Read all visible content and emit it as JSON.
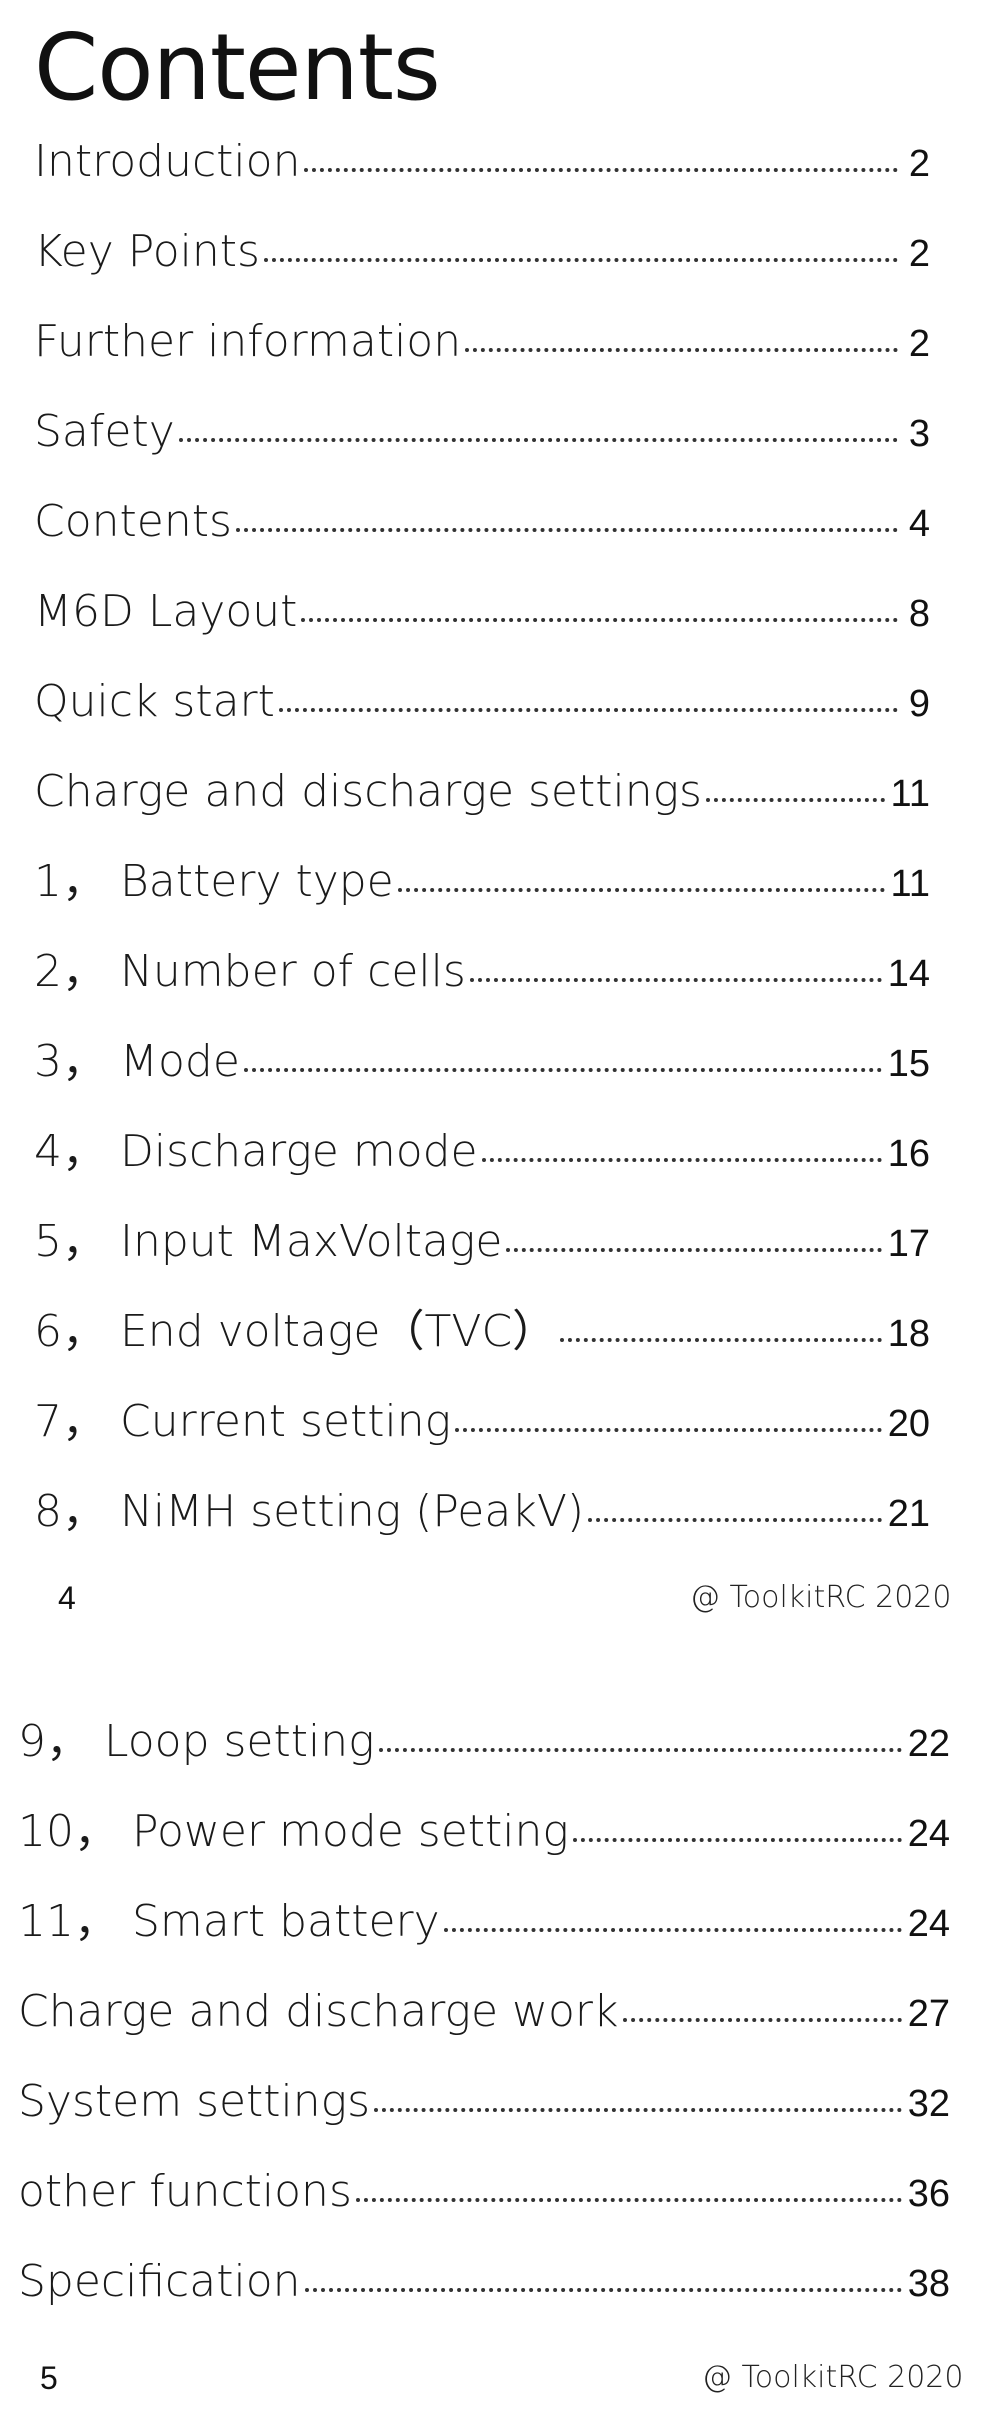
{
  "page1": {
    "title": "Contents",
    "entries": [
      {
        "num": "",
        "title": "Introduction",
        "page": "2"
      },
      {
        "num": "",
        "title": "Key Points",
        "page": "2"
      },
      {
        "num": "",
        "title": "Further information",
        "page": "2"
      },
      {
        "num": "",
        "title": "Safety",
        "page": "3"
      },
      {
        "num": "",
        "title": "Contents",
        "page": "4"
      },
      {
        "num": "",
        "title": "M6D Layout",
        "page": "8"
      },
      {
        "num": "",
        "title": "Quick start",
        "page": "9"
      },
      {
        "num": "",
        "title": "Charge and discharge settings",
        "page": "11"
      },
      {
        "num": "1，",
        "title": "Battery type",
        "page": "11"
      },
      {
        "num": "2，",
        "title": "Number of cells",
        "page": "14"
      },
      {
        "num": "3，",
        "title": "Mode",
        "page": "15"
      },
      {
        "num": "4，",
        "title": "Discharge mode",
        "page": "16"
      },
      {
        "num": "5，",
        "title": "Input MaxVoltage",
        "page": "17"
      },
      {
        "num": "6，",
        "title": "End voltage（TVC）",
        "page": "18"
      },
      {
        "num": "7，",
        "title": "Current setting",
        "page": "20"
      },
      {
        "num": "8，",
        "title": "NiMH setting (PeakV)",
        "page": "21"
      }
    ],
    "footer": {
      "page_number": "4",
      "copyright": "@ ToolkitRC 2020"
    }
  },
  "page2": {
    "entries": [
      {
        "num": "9，",
        "title": "Loop setting",
        "page": "22"
      },
      {
        "num": "10，",
        "title": "Power mode setting",
        "page": "24"
      },
      {
        "num": "11，",
        "title": "Smart battery",
        "page": "24"
      },
      {
        "num": "",
        "title": "Charge and discharge work",
        "page": "27"
      },
      {
        "num": "",
        "title": "System settings",
        "page": "32"
      },
      {
        "num": "",
        "title": "other functions",
        "page": "36"
      },
      {
        "num": "",
        "title": "Specification",
        "page": "38"
      }
    ],
    "footer": {
      "page_number": "5",
      "copyright": "@ ToolkitRC 2020"
    }
  }
}
